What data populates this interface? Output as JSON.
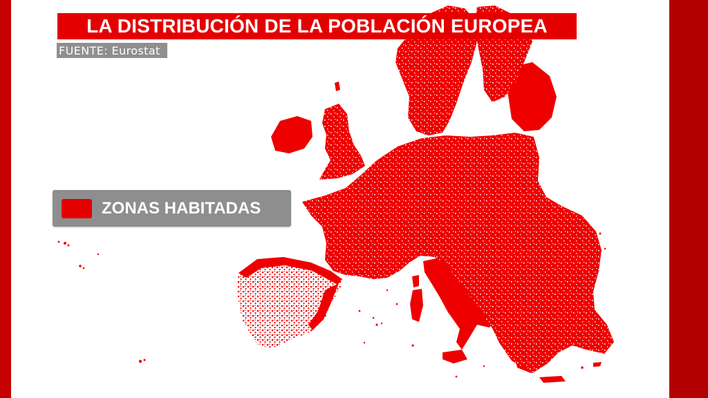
{
  "title": "LA DISTRIBUCIÓN DE LA POBLACIÓN EUROPEA",
  "source": "FUENTE: Eurostat",
  "legend": {
    "label": "ZONAS HABITADAS",
    "color": "#e50000"
  },
  "colors": {
    "accent": "#e50000",
    "frame": "#b30000",
    "panel": "#8e8e8e",
    "background": "#ffffff"
  }
}
